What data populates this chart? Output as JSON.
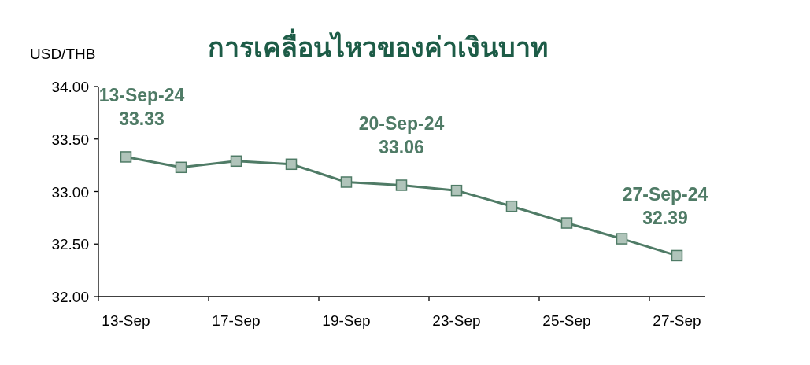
{
  "chart_data": {
    "type": "line",
    "title": "การเคลื่อนไหวของค่าเงินบาท",
    "ylabel": "USD/THB",
    "categories": [
      "13-Sep",
      null,
      "17-Sep",
      null,
      "19-Sep",
      null,
      "23-Sep",
      null,
      "25-Sep",
      null,
      "27-Sep"
    ],
    "series": [
      {
        "color": "#4f7b66",
        "values": [
          33.33,
          33.23,
          33.29,
          33.26,
          33.09,
          33.06,
          33.01,
          32.86,
          32.7,
          32.55,
          32.39
        ]
      }
    ],
    "ylim": [
      32,
      34
    ],
    "yticks": [
      {
        "value": 32,
        "label": "32.00"
      },
      {
        "value": 32.5,
        "label": "32.50"
      },
      {
        "value": 33,
        "label": "33.00"
      },
      {
        "value": 33.5,
        "label": "33.50"
      },
      {
        "value": 34,
        "label": "34.00"
      }
    ],
    "marker": "square",
    "annotations": [
      {
        "text": "13-Sep-24\n33.33",
        "y": 33.33
      },
      {
        "text": "20-Sep-24\n33.06",
        "y": 33.06
      },
      {
        "text": "27-Sep-24\n32.39",
        "y": 32.39
      }
    ]
  }
}
